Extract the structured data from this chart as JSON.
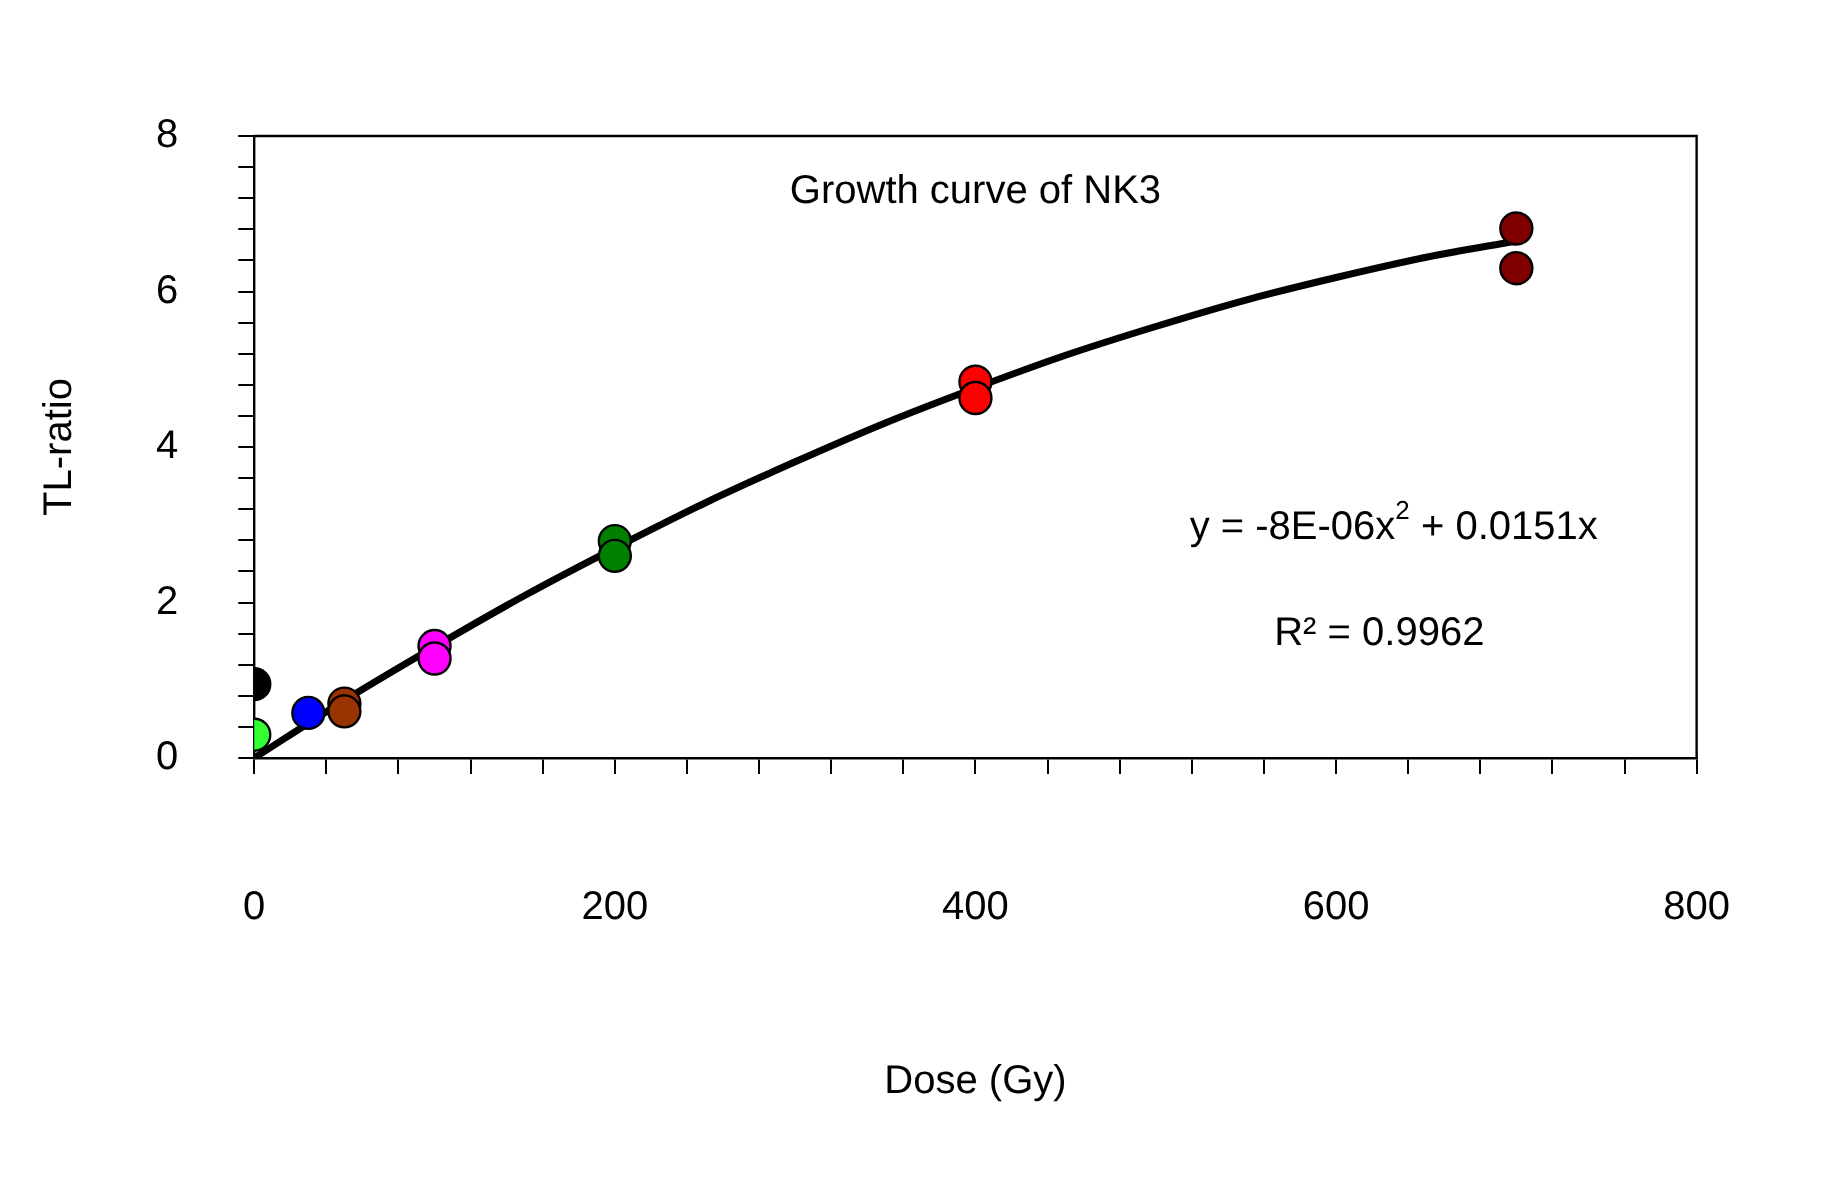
{
  "chart_data": {
    "type": "scatter",
    "title": "Growth curve of NK3",
    "xlabel": "Dose (Gy)",
    "ylabel": "TL-ratio",
    "xlim": [
      0,
      800
    ],
    "xticks": [
      0,
      {
        "value": 40,
        "label": null
      },
      {
        "value": 80,
        "label": null
      },
      {
        "value": 120,
        "label": null
      },
      {
        "value": 160,
        "label": null
      },
      200,
      {
        "value": 240,
        "label": null
      },
      {
        "value": 280,
        "label": null
      },
      {
        "value": 320,
        "label": null
      },
      {
        "value": 360,
        "label": null
      },
      400,
      {
        "value": 440,
        "label": null
      },
      {
        "value": 480,
        "label": null
      },
      {
        "value": 520,
        "label": null
      },
      {
        "value": 560,
        "label": null
      },
      600,
      {
        "value": 640,
        "label": null
      },
      {
        "value": 680,
        "label": null
      },
      {
        "value": 720,
        "label": null
      },
      {
        "value": 760,
        "label": null
      },
      800
    ],
    "ylim": [
      0,
      8
    ],
    "yticks": [
      0,
      {
        "value": 0.4,
        "label": null
      },
      {
        "value": 0.8,
        "label": null
      },
      {
        "value": 1.2,
        "label": null
      },
      {
        "value": 1.6,
        "label": null
      },
      2,
      {
        "value": 2.4,
        "label": null
      },
      {
        "value": 2.8,
        "label": null
      },
      {
        "value": 3.2,
        "label": null
      },
      {
        "value": 3.6,
        "label": null
      },
      4,
      {
        "value": 4.4,
        "label": null
      },
      {
        "value": 4.8,
        "label": null
      },
      {
        "value": 5.2,
        "label": null
      },
      {
        "value": 5.6,
        "label": null
      },
      6,
      {
        "value": 6.4,
        "label": null
      },
      {
        "value": 6.8,
        "label": null
      },
      {
        "value": 7.2,
        "label": null
      },
      {
        "value": 7.6,
        "label": null
      },
      8
    ],
    "grid": false,
    "legend": false,
    "series": [
      {
        "type": "line",
        "marker": "none",
        "line_style": "solid",
        "color": "#000000",
        "x": [
          0,
          50,
          100,
          150,
          200,
          250,
          300,
          350,
          400,
          450,
          500,
          550,
          600,
          650,
          700
        ],
        "values": [
          0,
          0.74,
          1.43,
          2.09,
          2.7,
          3.28,
          3.81,
          4.31,
          4.76,
          5.18,
          5.55,
          5.89,
          6.18,
          6.44,
          6.65
        ]
      },
      {
        "type": "scatter",
        "marker": "circle",
        "x": [
          0,
          0,
          30,
          50,
          50,
          100,
          100,
          200,
          200,
          400,
          400,
          700,
          700
        ],
        "values": [
          0.95,
          0.3,
          0.58,
          0.7,
          0.6,
          1.44,
          1.28,
          2.79,
          2.6,
          4.84,
          4.63,
          6.81,
          6.3
        ],
        "colors": [
          "#000000",
          "#33ff33",
          "#0000ff",
          "#993300",
          "#993300",
          "#ff00ff",
          "#ff00ff",
          "#008000",
          "#008000",
          "#ff0000",
          "#ff0000",
          "#800000",
          "#800000"
        ]
      }
    ],
    "annotations": [
      "y = -8E-06x$^{2}$ + 0.0151x",
      "R² = 0.9962"
    ]
  }
}
